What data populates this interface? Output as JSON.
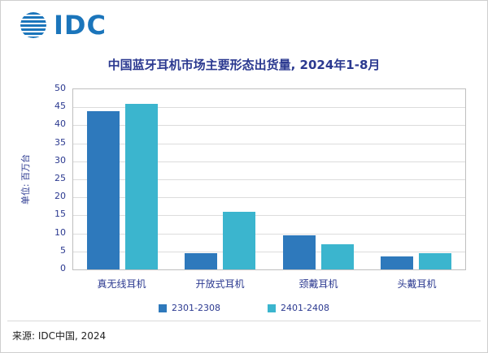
{
  "page": {
    "logo_text": "IDC",
    "source": "来源: IDC中国, 2024"
  },
  "chart_data": {
    "type": "bar",
    "title": "中国蓝牙耳机市场主要形态出货量, 2024年1-8月",
    "ylabel": "单位: 百万台",
    "xlabel": "",
    "categories": [
      "真无线耳机",
      "开放式耳机",
      "颈戴耳机",
      "头戴耳机"
    ],
    "series": [
      {
        "name": "2301-2308",
        "color": "#2E79BC",
        "values": [
          44,
          4.5,
          9.5,
          3.5
        ]
      },
      {
        "name": "2401-2408",
        "color": "#3BB5CE",
        "values": [
          46,
          16,
          7,
          4.5
        ]
      }
    ],
    "ylim": [
      0,
      50
    ],
    "ytick_step": 5,
    "grid": true,
    "legend_position": "bottom"
  }
}
